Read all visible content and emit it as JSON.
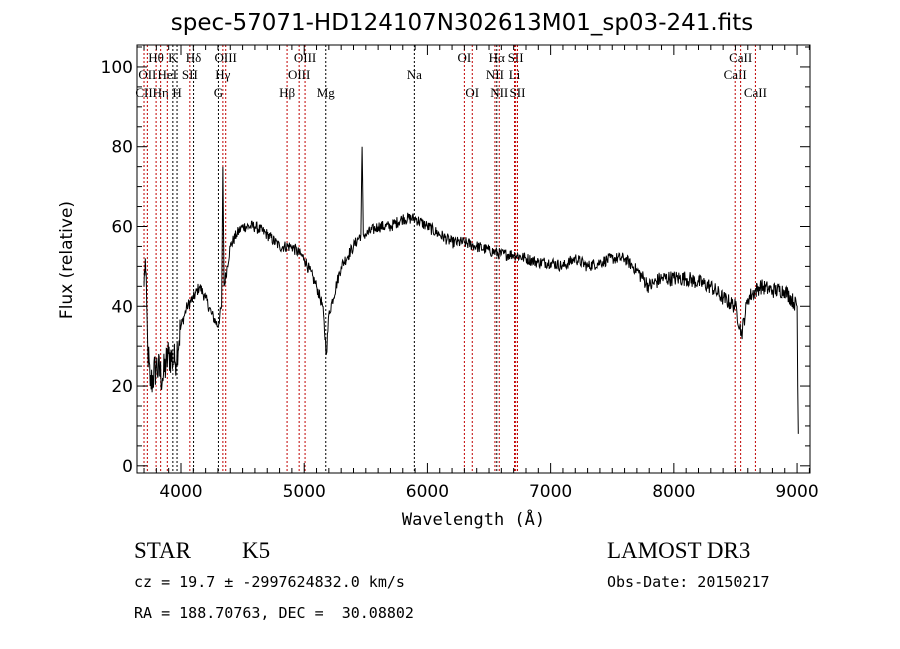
{
  "chart_data": {
    "type": "line",
    "title": "spec-57071-HD124107N302613M01_sp03-241.fits",
    "xlabel": "Wavelength (Å)",
    "ylabel": "Flux (relative)",
    "xlim": [
      3643,
      9105
    ],
    "ylim": [
      -1.8,
      105.5
    ],
    "xticks": [
      4000,
      5000,
      6000,
      7000,
      8000,
      9000
    ],
    "yticks": [
      0,
      20,
      40,
      60,
      80,
      100
    ],
    "x": [
      3700,
      3710,
      3730,
      3750,
      3800,
      3850,
      3900,
      3950,
      4000,
      4050,
      4100,
      4150,
      4200,
      4250,
      4300,
      4330,
      4340,
      4350,
      4400,
      4450,
      4500,
      4600,
      4700,
      4800,
      4900,
      5000,
      5100,
      5150,
      5180,
      5200,
      5300,
      5400,
      5460,
      5470,
      5480,
      5500,
      5600,
      5700,
      5800,
      5900,
      6000,
      6100,
      6200,
      6300,
      6400,
      6500,
      6600,
      6700,
      6800,
      6900,
      7000,
      7100,
      7200,
      7300,
      7400,
      7500,
      7600,
      7700,
      7800,
      7900,
      8000,
      8100,
      8200,
      8300,
      8400,
      8500,
      8550,
      8600,
      8700,
      8800,
      8900,
      9000,
      9005,
      9010
    ],
    "y": [
      45,
      52,
      30,
      20,
      25,
      22,
      28,
      26,
      35,
      40,
      42,
      45,
      42,
      38,
      35,
      40,
      75,
      45,
      55,
      58,
      60,
      60,
      58,
      55,
      55,
      52,
      45,
      40,
      28,
      38,
      50,
      55,
      58,
      80,
      58,
      58,
      60,
      60,
      62,
      62,
      60,
      58,
      56,
      56,
      55,
      54,
      53,
      53,
      52,
      51,
      51,
      50,
      52,
      50,
      51,
      52,
      52,
      49,
      45,
      47,
      47,
      47,
      46,
      45,
      42,
      40,
      33,
      42,
      45,
      44,
      44,
      40,
      20,
      8
    ],
    "lines": [
      {
        "label": "OII",
        "w": 3727,
        "row": 2,
        "color": "#c00000"
      },
      {
        "label": "CII",
        "w": 3700,
        "row": 3,
        "color": "#c00000"
      },
      {
        "label": "Hθ",
        "w": 3798,
        "row": 1,
        "color": "#c00000"
      },
      {
        "label": "Hη",
        "w": 3835,
        "row": 3,
        "color": "#c00000"
      },
      {
        "label": "HeI",
        "w": 3889,
        "row": 2,
        "color": "#c00000"
      },
      {
        "label": "K",
        "w": 3934,
        "row": 1,
        "color": "#000000"
      },
      {
        "label": "H",
        "w": 3968,
        "row": 3,
        "color": "#000000"
      },
      {
        "label": "SII",
        "w": 4072,
        "row": 2,
        "color": "#c00000"
      },
      {
        "label": "Hδ",
        "w": 4102,
        "row": 1,
        "color": "#000000"
      },
      {
        "label": "G",
        "w": 4304,
        "row": 3,
        "color": "#000000"
      },
      {
        "label": "Hγ",
        "w": 4340,
        "row": 2,
        "color": "#c00000"
      },
      {
        "label": "OIII",
        "w": 4363,
        "row": 1,
        "color": "#c00000"
      },
      {
        "label": "Hβ",
        "w": 4861,
        "row": 3,
        "color": "#c00000"
      },
      {
        "label": "OIII",
        "w": 4959,
        "row": 2,
        "color": "#c00000"
      },
      {
        "label": "OIII",
        "w": 5007,
        "row": 1,
        "color": "#c00000"
      },
      {
        "label": "Mg",
        "w": 5175,
        "row": 3,
        "color": "#000000"
      },
      {
        "label": "Na",
        "w": 5894,
        "row": 2,
        "color": "#000000"
      },
      {
        "label": "OI",
        "w": 6300,
        "row": 1,
        "color": "#c00000"
      },
      {
        "label": "OI",
        "w": 6364,
        "row": 3,
        "color": "#c00000"
      },
      {
        "label": "NII",
        "w": 6548,
        "row": 2,
        "color": "#c00000"
      },
      {
        "label": "Hα",
        "w": 6563,
        "row": 1,
        "color": "#000000"
      },
      {
        "label": "NII",
        "w": 6583,
        "row": 3,
        "color": "#c00000"
      },
      {
        "label": "Li",
        "w": 6707,
        "row": 2,
        "color": "#c00000"
      },
      {
        "label": "SII",
        "w": 6716,
        "row": 1,
        "color": "#c00000"
      },
      {
        "label": "SII",
        "w": 6731,
        "row": 3,
        "color": "#c00000"
      },
      {
        "label": "CaII",
        "w": 8498,
        "row": 2,
        "color": "#c00000"
      },
      {
        "label": "CaII",
        "w": 8542,
        "row": 1,
        "color": "#c00000"
      },
      {
        "label": "CaII",
        "w": 8662,
        "row": 3,
        "color": "#c00000"
      }
    ]
  },
  "footer": {
    "class_label": "STAR",
    "subclass": "K5",
    "survey": "LAMOST DR3",
    "cz": "cz = 19.7 ± -2997624832.0 km/s",
    "obs_date": "Obs-Date: 20150217",
    "radec": "RA = 188.70763, DEC =  30.08802"
  }
}
